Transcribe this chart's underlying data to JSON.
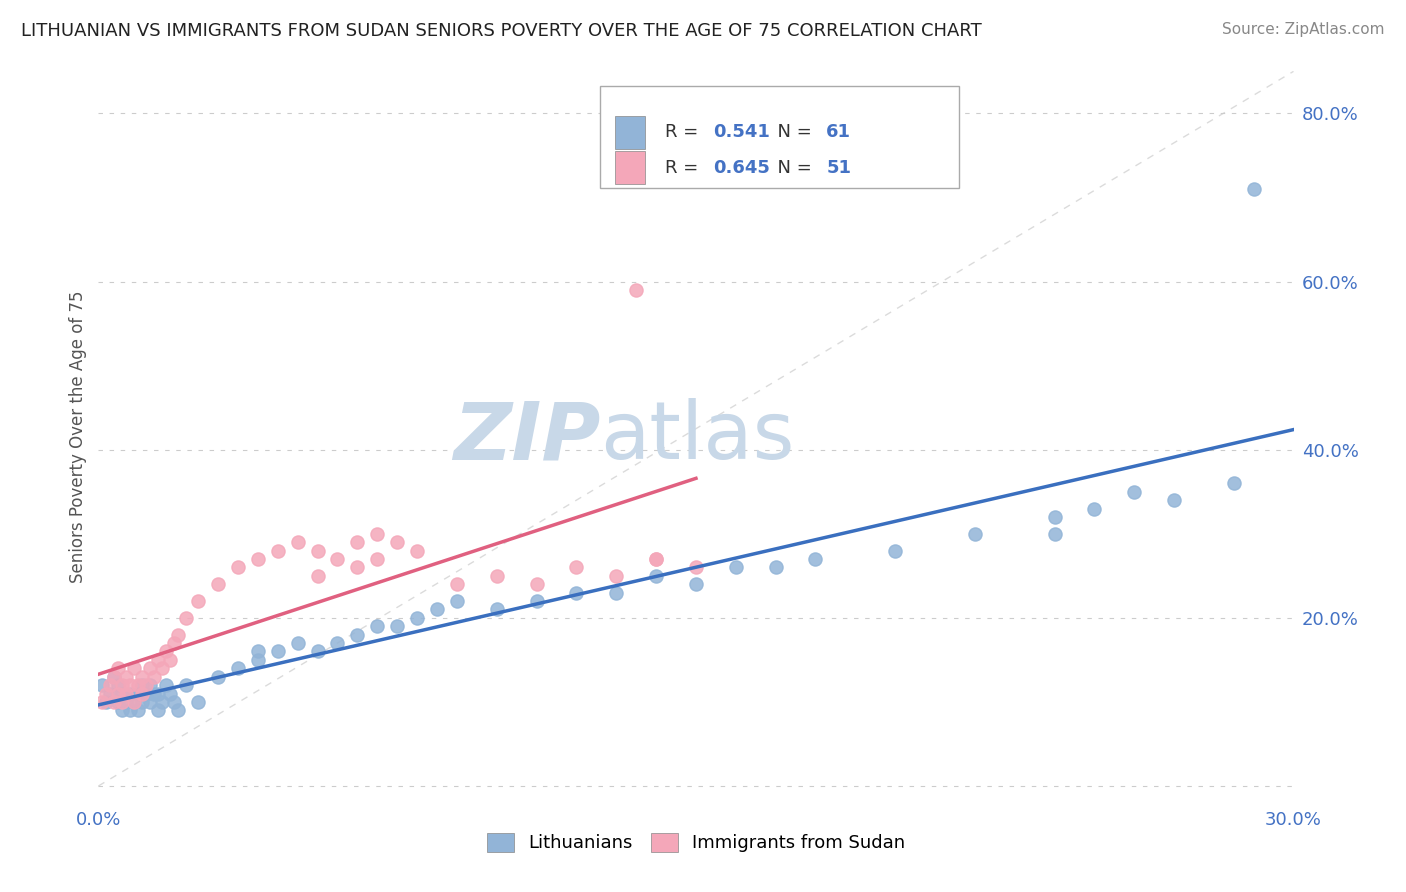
{
  "title": "LITHUANIAN VS IMMIGRANTS FROM SUDAN SENIORS POVERTY OVER THE AGE OF 75 CORRELATION CHART",
  "source": "Source: ZipAtlas.com",
  "ylabel": "Seniors Poverty Over the Age of 75",
  "xlim": [
    0.0,
    0.3
  ],
  "ylim": [
    -0.02,
    0.85
  ],
  "yticks": [
    0.0,
    0.2,
    0.4,
    0.6,
    0.8
  ],
  "ytick_labels": [
    "",
    "20.0%",
    "40.0%",
    "60.0%",
    "80.0%"
  ],
  "xtick_labels": [
    "0.0%",
    "30.0%"
  ],
  "series1_label": "Lithuanians",
  "series2_label": "Immigrants from Sudan",
  "series1_color": "#92b4d7",
  "series2_color": "#f4a7b9",
  "series1_line_color": "#3a6fbf",
  "series2_line_color": "#e06080",
  "background_color": "#ffffff",
  "watermark_color": "#c8d8e8",
  "grid_color": "#cccccc",
  "legend_r1": "0.541",
  "legend_n1": "61",
  "legend_r2": "0.645",
  "legend_n2": "51",
  "legend_text_color": "#4472c4",
  "legend_label_color": "#333333",
  "title_color": "#222222",
  "source_color": "#888888",
  "tick_color": "#4472c4",
  "ylabel_color": "#555555",
  "series1_x": [
    0.001,
    0.002,
    0.003,
    0.004,
    0.005,
    0.005,
    0.006,
    0.006,
    0.007,
    0.008,
    0.008,
    0.009,
    0.01,
    0.01,
    0.011,
    0.011,
    0.012,
    0.013,
    0.013,
    0.014,
    0.015,
    0.015,
    0.016,
    0.017,
    0.018,
    0.019,
    0.02,
    0.022,
    0.025,
    0.03,
    0.035,
    0.04,
    0.04,
    0.045,
    0.05,
    0.055,
    0.06,
    0.065,
    0.07,
    0.075,
    0.08,
    0.085,
    0.09,
    0.1,
    0.11,
    0.12,
    0.13,
    0.14,
    0.15,
    0.16,
    0.17,
    0.18,
    0.2,
    0.22,
    0.24,
    0.24,
    0.25,
    0.26,
    0.27,
    0.285,
    0.29
  ],
  "series1_y": [
    0.12,
    0.1,
    0.11,
    0.13,
    0.1,
    0.12,
    0.09,
    0.11,
    0.1,
    0.09,
    0.11,
    0.1,
    0.09,
    0.11,
    0.1,
    0.12,
    0.11,
    0.1,
    0.12,
    0.11,
    0.09,
    0.11,
    0.1,
    0.12,
    0.11,
    0.1,
    0.09,
    0.12,
    0.1,
    0.13,
    0.14,
    0.15,
    0.16,
    0.16,
    0.17,
    0.16,
    0.17,
    0.18,
    0.19,
    0.19,
    0.2,
    0.21,
    0.22,
    0.21,
    0.22,
    0.23,
    0.23,
    0.25,
    0.24,
    0.26,
    0.26,
    0.27,
    0.28,
    0.3,
    0.3,
    0.32,
    0.33,
    0.35,
    0.34,
    0.36,
    0.71
  ],
  "series2_x": [
    0.001,
    0.002,
    0.003,
    0.004,
    0.004,
    0.005,
    0.005,
    0.006,
    0.006,
    0.007,
    0.007,
    0.008,
    0.009,
    0.009,
    0.01,
    0.011,
    0.011,
    0.012,
    0.013,
    0.014,
    0.015,
    0.016,
    0.017,
    0.018,
    0.019,
    0.02,
    0.022,
    0.025,
    0.03,
    0.035,
    0.04,
    0.045,
    0.05,
    0.055,
    0.06,
    0.065,
    0.07,
    0.075,
    0.08,
    0.09,
    0.1,
    0.11,
    0.12,
    0.13,
    0.14,
    0.15,
    0.055,
    0.065,
    0.07,
    0.14,
    0.135
  ],
  "series2_y": [
    0.1,
    0.11,
    0.12,
    0.1,
    0.13,
    0.11,
    0.14,
    0.1,
    0.12,
    0.11,
    0.13,
    0.12,
    0.1,
    0.14,
    0.12,
    0.11,
    0.13,
    0.12,
    0.14,
    0.13,
    0.15,
    0.14,
    0.16,
    0.15,
    0.17,
    0.18,
    0.2,
    0.22,
    0.24,
    0.26,
    0.27,
    0.28,
    0.29,
    0.28,
    0.27,
    0.29,
    0.3,
    0.29,
    0.28,
    0.24,
    0.25,
    0.24,
    0.26,
    0.25,
    0.27,
    0.26,
    0.25,
    0.26,
    0.27,
    0.27,
    0.59
  ]
}
